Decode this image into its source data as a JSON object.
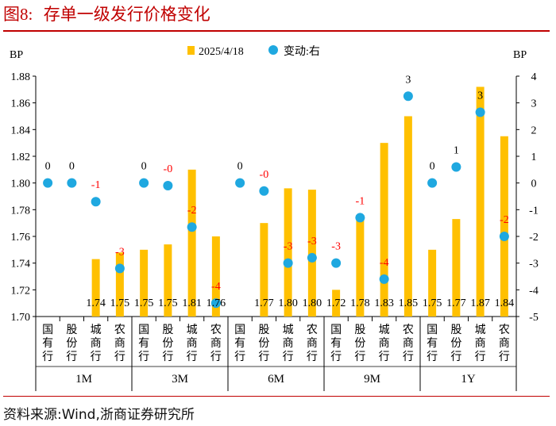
{
  "figure": {
    "label": "图8:",
    "title": "存单一级发行价格变化",
    "source": "资料来源:Wind,浙商证券研究所"
  },
  "colors": {
    "bar": "#FFC000",
    "dot": "#1FA8E0",
    "accent": "#C00000",
    "label_red": "#FF0000",
    "label_black": "#000000"
  },
  "chart_data": {
    "type": "bar",
    "title": "存单一级发行价格变化",
    "left_axis": {
      "label": "BP",
      "ylim": [
        1.7,
        1.88
      ],
      "ticks": [
        "1.70",
        "1.72",
        "1.74",
        "1.76",
        "1.78",
        "1.80",
        "1.82",
        "1.84",
        "1.86",
        "1.88"
      ]
    },
    "right_axis": {
      "label": "BP",
      "ylim": [
        -5,
        4
      ],
      "ticks": [
        "-5",
        "-4",
        "-3",
        "-2",
        "-1",
        "0",
        "1",
        "2",
        "3",
        "4"
      ]
    },
    "legend": [
      "2025/4/18",
      "变动:右"
    ],
    "legend_position": "top",
    "terms": [
      "1M",
      "3M",
      "6M",
      "9M",
      "1Y"
    ],
    "bank_types": [
      "国有行",
      "股份行",
      "城商行",
      "农商行"
    ],
    "series": [
      {
        "name": "2025/4/18",
        "axis": "left",
        "type": "bar",
        "values": [
          1.7,
          1.7,
          1.743,
          1.748,
          1.75,
          1.754,
          1.81,
          1.76,
          1.7,
          1.77,
          1.796,
          1.795,
          1.72,
          1.776,
          1.83,
          1.85,
          1.75,
          1.773,
          1.872,
          1.835
        ],
        "value_labels": [
          "",
          "",
          "1.74",
          "1.75",
          "1.75",
          "1.75",
          "1.81",
          "1.76",
          "",
          "1.77",
          "1.80",
          "1.80",
          "1.72",
          "1.78",
          "1.83",
          "1.85",
          "1.75",
          "1.77",
          "1.87",
          "1.84"
        ]
      },
      {
        "name": "变动:右",
        "axis": "right",
        "type": "scatter",
        "values": [
          0,
          0,
          -0.7,
          -3.2,
          0,
          -0.1,
          -1.65,
          -4.5,
          0,
          -0.3,
          -3.0,
          -2.8,
          -3.0,
          -1.3,
          -3.6,
          3.25,
          0,
          0.6,
          2.65,
          -2.0
        ],
        "value_labels": [
          "0",
          "0",
          "-1",
          "-3",
          "0",
          "-0",
          "-2",
          "-4",
          "0",
          "-0",
          "-3",
          "-3",
          "-3",
          "-1",
          "-4",
          "3",
          "0",
          "1",
          "3",
          "-2"
        ]
      }
    ]
  }
}
